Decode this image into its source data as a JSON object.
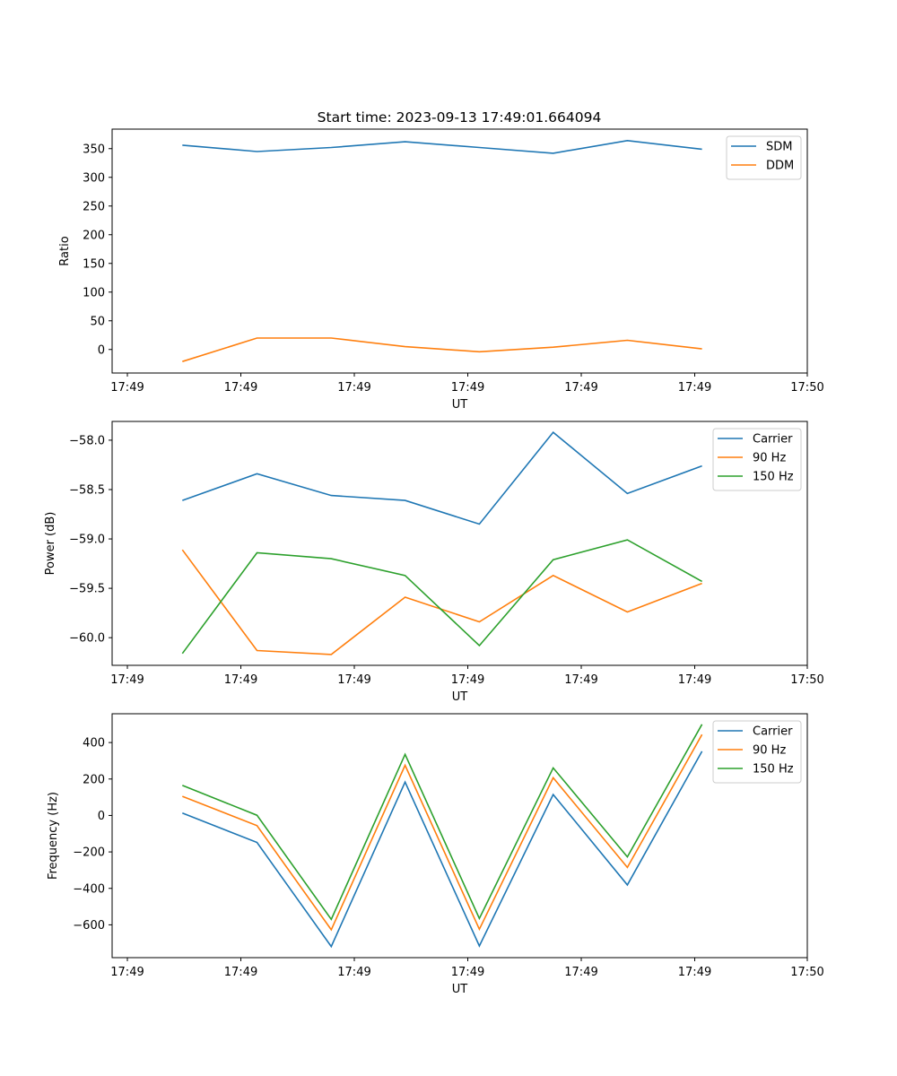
{
  "title": "Start time: 2023-09-13 17:49:01.664094",
  "chart_data": [
    {
      "type": "line",
      "title": "Start time: 2023-09-13 17:49:01.664094",
      "xlabel": "UT",
      "ylabel": "Ratio",
      "xtick_labels": [
        "17:49",
        "17:49",
        "17:49",
        "17:49",
        "17:49",
        "17:49",
        "17:50"
      ],
      "ytick_labels": [
        "0",
        "50",
        "100",
        "150",
        "200",
        "250",
        "300",
        "350"
      ],
      "yticks": [
        0,
        50,
        100,
        150,
        200,
        250,
        300,
        350
      ],
      "ylim": [
        -41,
        384
      ],
      "x": [
        0,
        1,
        2,
        3,
        4,
        5,
        6,
        7
      ],
      "series": [
        {
          "name": "SDM",
          "color": "#1f77b4",
          "values": [
            356,
            345,
            352,
            362,
            352,
            342,
            364,
            349
          ]
        },
        {
          "name": "DDM",
          "color": "#ff7f0e",
          "values": [
            -21,
            20,
            20,
            5,
            -4,
            4,
            16,
            1
          ]
        }
      ],
      "legend": "top-right"
    },
    {
      "type": "line",
      "title": "",
      "xlabel": "UT",
      "ylabel": "Power (dB)",
      "xtick_labels": [
        "17:49",
        "17:49",
        "17:49",
        "17:49",
        "17:49",
        "17:49",
        "17:50"
      ],
      "ytick_labels": [
        "−60.0",
        "−59.5",
        "−59.0",
        "−58.5",
        "−58.0"
      ],
      "yticks": [
        -60.0,
        -59.5,
        -59.0,
        -58.5,
        -58.0
      ],
      "ylim": [
        -60.28,
        -57.81
      ],
      "x": [
        0,
        1,
        2,
        3,
        4,
        5,
        6,
        7
      ],
      "series": [
        {
          "name": "Carrier",
          "color": "#1f77b4",
          "values": [
            -58.61,
            -58.34,
            -58.56,
            -58.61,
            -58.85,
            -57.92,
            -58.54,
            -58.26
          ]
        },
        {
          "name": "90 Hz",
          "color": "#ff7f0e",
          "values": [
            -59.11,
            -60.13,
            -60.17,
            -59.59,
            -59.84,
            -59.37,
            -59.74,
            -59.45
          ]
        },
        {
          "name": "150 Hz",
          "color": "#2ca02c",
          "values": [
            -60.16,
            -59.14,
            -59.2,
            -59.37,
            -60.08,
            -59.21,
            -59.01,
            -59.43
          ]
        }
      ],
      "legend": "top-right"
    },
    {
      "type": "line",
      "title": "",
      "xlabel": "UT",
      "ylabel": "Frequency (Hz)",
      "xtick_labels": [
        "17:49",
        "17:49",
        "17:49",
        "17:49",
        "17:49",
        "17:49",
        "17:50"
      ],
      "ytick_labels": [
        "−600",
        "−400",
        "−200",
        "0",
        "200",
        "400"
      ],
      "yticks": [
        -600,
        -400,
        -200,
        0,
        200,
        400
      ],
      "ylim": [
        -780,
        558
      ],
      "x": [
        0,
        1,
        2,
        3,
        4,
        5,
        6,
        7
      ],
      "series": [
        {
          "name": "Carrier",
          "color": "#1f77b4",
          "values": [
            13,
            -148,
            -719,
            183,
            -716,
            115,
            -381,
            352
          ]
        },
        {
          "name": "90 Hz",
          "color": "#ff7f0e",
          "values": [
            105,
            -56,
            -627,
            275,
            -624,
            207,
            -285,
            444
          ]
        },
        {
          "name": "150 Hz",
          "color": "#2ca02c",
          "values": [
            165,
            1,
            -570,
            335,
            -565,
            261,
            -227,
            500
          ]
        }
      ],
      "legend": "top-right"
    }
  ]
}
